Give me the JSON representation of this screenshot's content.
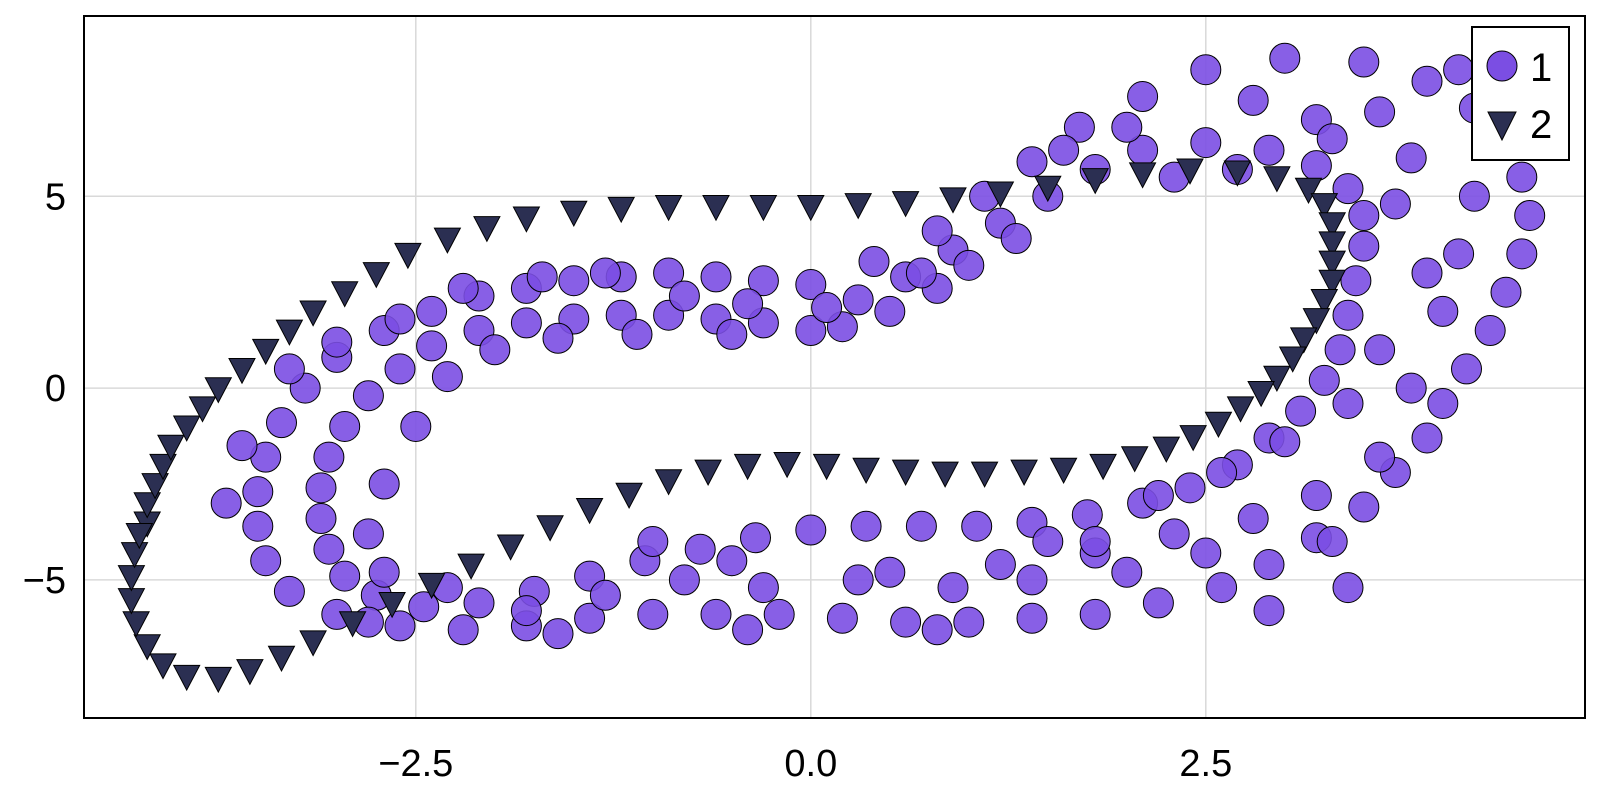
{
  "chart_data": {
    "type": "scatter",
    "title": "",
    "xlabel": "",
    "ylabel": "",
    "xlim": [
      -4.6,
      4.9
    ],
    "ylim": [
      -8.6,
      9.7
    ],
    "xticks": [
      -2.5,
      0.0,
      2.5
    ],
    "xtick_labels": [
      "−2.5",
      "0.0",
      "2.5"
    ],
    "yticks": [
      -5,
      0,
      5
    ],
    "ytick_labels": [
      "−5",
      "0",
      "5"
    ],
    "grid": true,
    "legend": {
      "position": "top-right"
    },
    "series": [
      {
        "name": "1",
        "marker": "circle",
        "color": "#7b4ee3",
        "edge_color": "#000000",
        "description_of_shape": "loose band (inner and outer tracks) around a twisted loop",
        "points": [
          [
            0.0,
            1.5
          ],
          [
            -0.3,
            1.7
          ],
          [
            -0.6,
            1.8
          ],
          [
            -0.9,
            1.9
          ],
          [
            -1.2,
            1.9
          ],
          [
            -1.5,
            1.8
          ],
          [
            -1.8,
            1.7
          ],
          [
            -2.1,
            1.5
          ],
          [
            -2.4,
            1.1
          ],
          [
            -2.6,
            0.5
          ],
          [
            -2.8,
            -0.2
          ],
          [
            -2.95,
            -1.0
          ],
          [
            -3.05,
            -1.8
          ],
          [
            -3.1,
            -2.6
          ],
          [
            -3.1,
            -3.4
          ],
          [
            -3.05,
            -4.2
          ],
          [
            -2.95,
            -4.9
          ],
          [
            -2.75,
            -5.4
          ],
          [
            -2.45,
            -5.7
          ],
          [
            -2.1,
            -5.6
          ],
          [
            -1.75,
            -5.3
          ],
          [
            -1.4,
            -4.9
          ],
          [
            -1.05,
            -4.5
          ],
          [
            -0.7,
            -4.2
          ],
          [
            -0.35,
            -3.9
          ],
          [
            0.0,
            -3.7
          ],
          [
            0.35,
            -3.6
          ],
          [
            0.7,
            -3.6
          ],
          [
            1.05,
            -3.6
          ],
          [
            1.4,
            -3.5
          ],
          [
            1.75,
            -3.3
          ],
          [
            2.1,
            -3.0
          ],
          [
            2.4,
            -2.6
          ],
          [
            2.7,
            -2.0
          ],
          [
            2.9,
            -1.3
          ],
          [
            3.1,
            -0.6
          ],
          [
            3.25,
            0.2
          ],
          [
            3.35,
            1.0
          ],
          [
            3.4,
            1.9
          ],
          [
            3.45,
            2.8
          ],
          [
            3.5,
            3.7
          ],
          [
            3.5,
            4.5
          ],
          [
            3.4,
            5.2
          ],
          [
            3.2,
            5.8
          ],
          [
            2.9,
            6.2
          ],
          [
            2.5,
            6.4
          ],
          [
            2.1,
            6.2
          ],
          [
            1.8,
            5.7
          ],
          [
            1.5,
            5.0
          ],
          [
            1.2,
            4.3
          ],
          [
            0.9,
            3.6
          ],
          [
            0.6,
            2.9
          ],
          [
            0.3,
            2.3
          ],
          [
            0.0,
            2.7
          ],
          [
            -0.3,
            2.8
          ],
          [
            -0.6,
            2.9
          ],
          [
            -0.9,
            3.0
          ],
          [
            -1.2,
            2.9
          ],
          [
            -1.5,
            2.8
          ],
          [
            -1.8,
            2.6
          ],
          [
            -2.1,
            2.4
          ],
          [
            -2.4,
            2.0
          ],
          [
            -2.7,
            1.5
          ],
          [
            -3.0,
            0.8
          ],
          [
            -3.2,
            0.0
          ],
          [
            -3.35,
            -0.9
          ],
          [
            -3.45,
            -1.8
          ],
          [
            -3.5,
            -2.7
          ],
          [
            -3.5,
            -3.6
          ],
          [
            -3.45,
            -4.5
          ],
          [
            -3.3,
            -5.3
          ],
          [
            -3.0,
            -5.9
          ],
          [
            -2.6,
            -6.2
          ],
          [
            -2.2,
            -6.3
          ],
          [
            -1.8,
            -6.2
          ],
          [
            -1.4,
            -6.0
          ],
          [
            -1.0,
            -5.9
          ],
          [
            -0.6,
            -5.9
          ],
          [
            -0.2,
            -5.9
          ],
          [
            0.2,
            -6.0
          ],
          [
            0.6,
            -6.1
          ],
          [
            1.0,
            -6.1
          ],
          [
            1.4,
            -6.0
          ],
          [
            1.8,
            -5.9
          ],
          [
            2.2,
            -5.6
          ],
          [
            2.6,
            -5.2
          ],
          [
            2.9,
            -4.6
          ],
          [
            3.2,
            -3.9
          ],
          [
            3.5,
            -3.1
          ],
          [
            3.7,
            -2.2
          ],
          [
            3.9,
            -1.3
          ],
          [
            4.0,
            -0.4
          ],
          [
            4.15,
            0.5
          ],
          [
            4.3,
            1.5
          ],
          [
            4.4,
            2.5
          ],
          [
            4.5,
            3.5
          ],
          [
            4.55,
            4.5
          ],
          [
            4.5,
            5.5
          ],
          [
            4.4,
            6.4
          ],
          [
            4.2,
            7.3
          ],
          [
            3.9,
            8.0
          ],
          [
            3.5,
            8.5
          ],
          [
            3.0,
            8.6
          ],
          [
            2.5,
            8.3
          ],
          [
            2.1,
            7.6
          ],
          [
            1.7,
            6.8
          ],
          [
            1.4,
            5.9
          ],
          [
            1.1,
            5.0
          ],
          [
            0.8,
            4.1
          ],
          [
            0.4,
            3.3
          ],
          [
            -1.0,
            -4.0
          ],
          [
            -0.5,
            -4.5
          ],
          [
            0.5,
            -4.8
          ],
          [
            1.2,
            -4.6
          ],
          [
            1.8,
            -4.3
          ],
          [
            2.3,
            -3.8
          ],
          [
            2.8,
            -3.4
          ],
          [
            3.2,
            -2.8
          ],
          [
            3.6,
            -1.8
          ],
          [
            3.8,
            0.0
          ],
          [
            4.0,
            2.0
          ],
          [
            4.1,
            3.5
          ],
          [
            4.2,
            5.0
          ],
          [
            3.8,
            6.0
          ],
          [
            3.6,
            7.2
          ],
          [
            3.2,
            7.0
          ],
          [
            2.8,
            7.5
          ],
          [
            2.0,
            6.8
          ],
          [
            1.6,
            6.2
          ],
          [
            4.4,
            8.1
          ],
          [
            4.1,
            8.3
          ],
          [
            3.3,
            6.5
          ],
          [
            3.7,
            4.8
          ],
          [
            3.9,
            3.0
          ],
          [
            3.6,
            1.0
          ],
          [
            3.4,
            -0.4
          ],
          [
            3.0,
            -1.4
          ],
          [
            2.6,
            -2.2
          ],
          [
            2.2,
            -2.8
          ],
          [
            1.8,
            -4.0
          ],
          [
            1.4,
            -5.0
          ],
          [
            0.9,
            -5.2
          ],
          [
            0.3,
            -5.0
          ],
          [
            -0.3,
            -5.2
          ],
          [
            -0.8,
            -5.0
          ],
          [
            -1.3,
            -5.4
          ],
          [
            -1.8,
            -5.8
          ],
          [
            -2.3,
            -5.2
          ],
          [
            -2.7,
            -4.8
          ],
          [
            -2.8,
            -3.8
          ],
          [
            -2.7,
            -2.5
          ],
          [
            -2.5,
            -1.0
          ],
          [
            -2.3,
            0.3
          ],
          [
            -2.0,
            1.0
          ],
          [
            -1.6,
            1.3
          ],
          [
            -1.1,
            1.4
          ],
          [
            -0.5,
            1.4
          ],
          [
            0.2,
            1.6
          ],
          [
            0.5,
            2.0
          ],
          [
            0.8,
            2.6
          ],
          [
            1.0,
            3.2
          ],
          [
            1.3,
            3.9
          ],
          [
            2.3,
            5.5
          ],
          [
            2.7,
            5.7
          ],
          [
            -3.7,
            -3.0
          ],
          [
            -3.6,
            -1.5
          ],
          [
            -3.3,
            0.5
          ],
          [
            -3.0,
            1.2
          ],
          [
            -2.6,
            1.8
          ],
          [
            -2.2,
            2.6
          ],
          [
            -1.7,
            2.9
          ],
          [
            -1.3,
            3.0
          ],
          [
            -0.8,
            2.4
          ],
          [
            -0.4,
            2.2
          ],
          [
            0.1,
            2.1
          ],
          [
            0.7,
            3.0
          ],
          [
            1.5,
            -4.0
          ],
          [
            2.0,
            -4.8
          ],
          [
            2.5,
            -4.3
          ],
          [
            3.3,
            -4.0
          ],
          [
            3.4,
            -5.2
          ],
          [
            2.9,
            -5.8
          ],
          [
            0.8,
            -6.3
          ],
          [
            -0.4,
            -6.3
          ],
          [
            -1.6,
            -6.4
          ],
          [
            -2.8,
            -6.1
          ]
        ]
      },
      {
        "name": "2",
        "marker": "triangle-down",
        "color": "#2b2f52",
        "edge_color": "#000000",
        "description_of_shape": "tight single twisted loop",
        "points": [
          [
            -4.2,
            -3.5
          ],
          [
            -4.2,
            -3.0
          ],
          [
            -4.15,
            -2.5
          ],
          [
            -4.1,
            -2.0
          ],
          [
            -4.05,
            -1.5
          ],
          [
            -3.95,
            -1.0
          ],
          [
            -3.85,
            -0.5
          ],
          [
            -3.75,
            0.0
          ],
          [
            -3.6,
            0.5
          ],
          [
            -3.45,
            1.0
          ],
          [
            -3.3,
            1.5
          ],
          [
            -3.15,
            2.0
          ],
          [
            -2.95,
            2.5
          ],
          [
            -2.75,
            3.0
          ],
          [
            -2.55,
            3.5
          ],
          [
            -2.3,
            3.9
          ],
          [
            -2.05,
            4.2
          ],
          [
            -1.8,
            4.45
          ],
          [
            -1.5,
            4.6
          ],
          [
            -1.2,
            4.7
          ],
          [
            -0.9,
            4.75
          ],
          [
            -0.6,
            4.75
          ],
          [
            -0.3,
            4.75
          ],
          [
            0.0,
            4.75
          ],
          [
            0.3,
            4.8
          ],
          [
            0.6,
            4.85
          ],
          [
            0.9,
            4.95
          ],
          [
            1.2,
            5.1
          ],
          [
            1.5,
            5.25
          ],
          [
            1.8,
            5.45
          ],
          [
            2.1,
            5.6
          ],
          [
            2.4,
            5.7
          ],
          [
            2.7,
            5.65
          ],
          [
            2.95,
            5.5
          ],
          [
            3.15,
            5.2
          ],
          [
            3.25,
            4.8
          ],
          [
            3.3,
            4.3
          ],
          [
            3.3,
            3.8
          ],
          [
            3.3,
            3.3
          ],
          [
            3.3,
            2.8
          ],
          [
            3.25,
            2.3
          ],
          [
            3.2,
            1.8
          ],
          [
            3.12,
            1.3
          ],
          [
            3.05,
            0.8
          ],
          [
            2.95,
            0.3
          ],
          [
            2.85,
            -0.1
          ],
          [
            2.72,
            -0.5
          ],
          [
            2.58,
            -0.9
          ],
          [
            2.42,
            -1.25
          ],
          [
            2.25,
            -1.55
          ],
          [
            2.05,
            -1.8
          ],
          [
            1.85,
            -2.0
          ],
          [
            1.6,
            -2.1
          ],
          [
            1.35,
            -2.15
          ],
          [
            1.1,
            -2.2
          ],
          [
            0.85,
            -2.2
          ],
          [
            0.6,
            -2.15
          ],
          [
            0.35,
            -2.1
          ],
          [
            0.1,
            -2.0
          ],
          [
            -0.15,
            -1.95
          ],
          [
            -0.4,
            -2.0
          ],
          [
            -0.65,
            -2.15
          ],
          [
            -0.9,
            -2.4
          ],
          [
            -1.15,
            -2.75
          ],
          [
            -1.4,
            -3.15
          ],
          [
            -1.65,
            -3.6
          ],
          [
            -1.9,
            -4.1
          ],
          [
            -2.15,
            -4.6
          ],
          [
            -2.4,
            -5.1
          ],
          [
            -2.65,
            -5.6
          ],
          [
            -2.9,
            -6.1
          ],
          [
            -3.15,
            -6.6
          ],
          [
            -3.35,
            -7.0
          ],
          [
            -3.55,
            -7.35
          ],
          [
            -3.75,
            -7.55
          ],
          [
            -3.95,
            -7.5
          ],
          [
            -4.1,
            -7.2
          ],
          [
            -4.2,
            -6.7
          ],
          [
            -4.27,
            -6.1
          ],
          [
            -4.3,
            -5.5
          ],
          [
            -4.3,
            -4.9
          ],
          [
            -4.28,
            -4.3
          ],
          [
            -4.25,
            -3.8
          ]
        ]
      }
    ]
  }
}
